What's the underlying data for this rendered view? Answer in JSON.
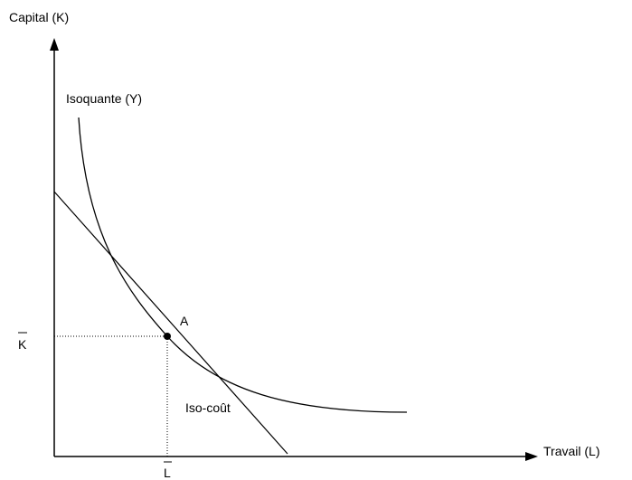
{
  "axes": {
    "y_label": "Capital (K)",
    "x_label": "Travail (L)"
  },
  "curves": {
    "isoquant": "Isoquante (Y)",
    "isocost": "Iso-coût"
  },
  "point": {
    "label": "A",
    "k_label": "K",
    "l_label": "L"
  }
}
